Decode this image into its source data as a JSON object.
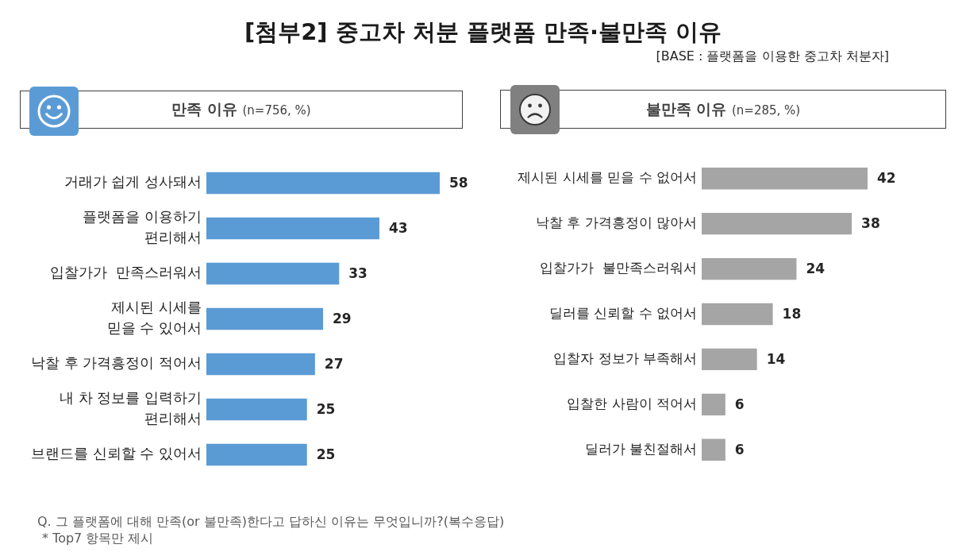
{
  "chart_data": [
    {
      "type": "bar",
      "orientation": "horizontal",
      "title": "[첨부2] 중고차 처분 플랫폼 만족·불만족 이유",
      "subtitle": "만족 이유 (n=756, %)",
      "categories": [
        "거래가 쉽게 성사돼서",
        "플랫폼을 이용하기\n편리해서",
        "입찰가가  만족스러워서",
        "제시된 시세를\n믿을 수 있어서",
        "낙찰 후 가격흥정이 적어서",
        "내 차 정보를 입력하기\n편리해서",
        "브랜드를 신뢰할 수 있어서"
      ],
      "values": [
        58,
        43,
        33,
        29,
        27,
        25,
        25
      ],
      "color": "#5b9bd5",
      "data_labels": true,
      "tick_labels": "y",
      "legend": false,
      "grid": false,
      "annotations": [
        "[BASE : 플랫폼을 이용한 중고차 처분자]",
        "Q. 그 플랫폼에 대해 만족(or 불만족)한다고 답하신 이유는 무엇입니까?(복수응답)",
        "* Top7 항목만 제시"
      ]
    },
    {
      "type": "bar",
      "orientation": "horizontal",
      "subtitle": "불만족 이유 (n=285, %)",
      "categories": [
        "제시된 시세를 믿을 수 없어서",
        "낙찰 후 가격흥정이 많아서",
        "입찰가가  불만족스러워서",
        "딜러를 신뢰할 수 없어서",
        "입찰자 정보가 부족해서",
        "입찰한 사람이 적어서",
        "딜러가 불친절해서"
      ],
      "values": [
        42,
        38,
        24,
        18,
        14,
        6,
        6
      ],
      "color": "#a5a5a5",
      "data_labels": true,
      "tick_labels": "y",
      "legend": false,
      "grid": false
    }
  ]
}
